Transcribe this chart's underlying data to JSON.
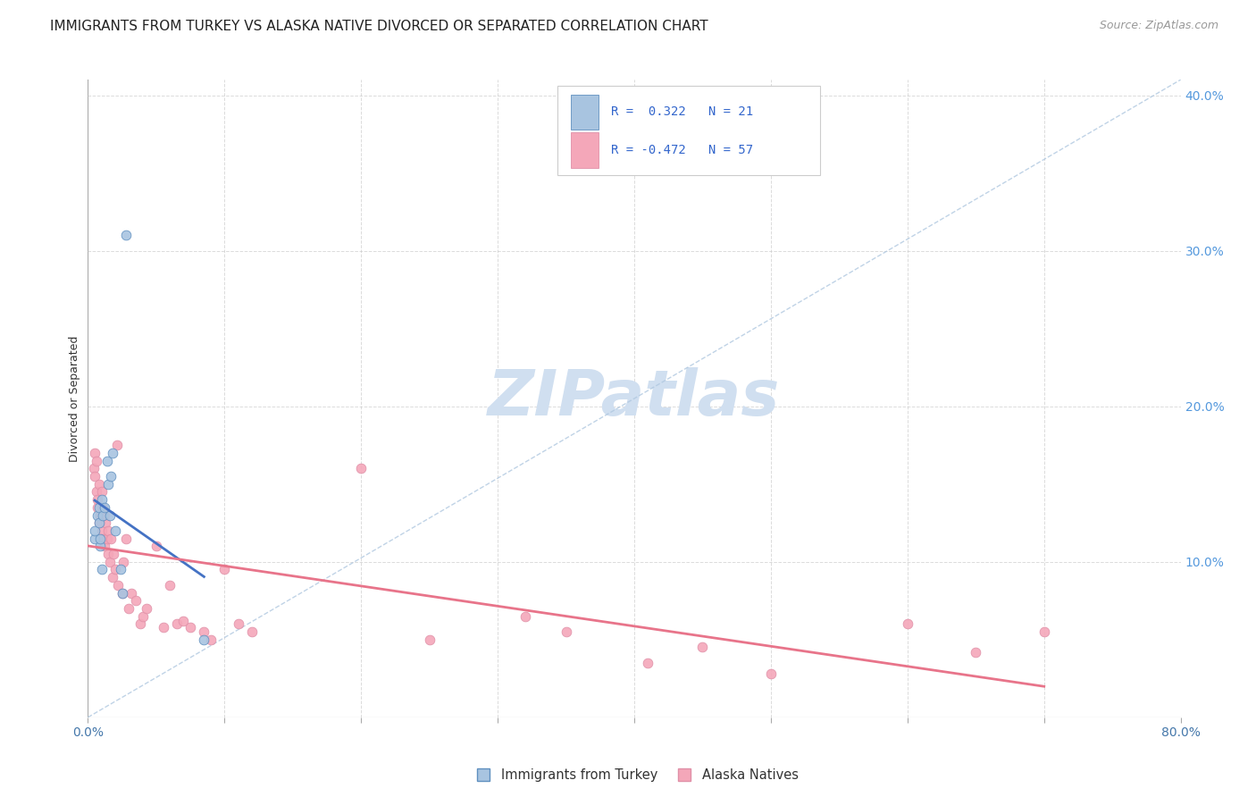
{
  "title": "IMMIGRANTS FROM TURKEY VS ALASKA NATIVE DIVORCED OR SEPARATED CORRELATION CHART",
  "source": "Source: ZipAtlas.com",
  "ylabel": "Divorced or Separated",
  "legend_entries": [
    {
      "label": "Immigrants from Turkey",
      "R": 0.322,
      "N": 21
    },
    {
      "label": "Alaska Natives",
      "R": -0.472,
      "N": 57
    }
  ],
  "background_color": "#ffffff",
  "plot_bg_color": "#ffffff",
  "grid_color": "#cccccc",
  "xmin": 0.0,
  "xmax": 0.8,
  "ymin": 0.0,
  "ymax": 0.41,
  "x_ticks": [
    0.0,
    0.1,
    0.2,
    0.3,
    0.4,
    0.5,
    0.6,
    0.7,
    0.8
  ],
  "y_ticks_right": [
    0.0,
    0.1,
    0.2,
    0.3,
    0.4
  ],
  "blue_scatter_x": [
    0.005,
    0.005,
    0.007,
    0.008,
    0.008,
    0.009,
    0.009,
    0.01,
    0.01,
    0.011,
    0.012,
    0.014,
    0.015,
    0.016,
    0.017,
    0.018,
    0.02,
    0.024,
    0.025,
    0.028,
    0.085
  ],
  "blue_scatter_y": [
    0.115,
    0.12,
    0.13,
    0.125,
    0.135,
    0.11,
    0.115,
    0.14,
    0.095,
    0.13,
    0.135,
    0.165,
    0.15,
    0.13,
    0.155,
    0.17,
    0.12,
    0.095,
    0.08,
    0.31,
    0.05
  ],
  "pink_scatter_x": [
    0.004,
    0.005,
    0.005,
    0.006,
    0.006,
    0.007,
    0.007,
    0.008,
    0.008,
    0.009,
    0.01,
    0.01,
    0.011,
    0.011,
    0.012,
    0.012,
    0.013,
    0.014,
    0.015,
    0.015,
    0.016,
    0.017,
    0.018,
    0.019,
    0.02,
    0.021,
    0.022,
    0.025,
    0.026,
    0.028,
    0.03,
    0.032,
    0.035,
    0.038,
    0.04,
    0.043,
    0.05,
    0.055,
    0.06,
    0.065,
    0.07,
    0.075,
    0.085,
    0.09,
    0.1,
    0.11,
    0.12,
    0.2,
    0.25,
    0.32,
    0.35,
    0.41,
    0.45,
    0.5,
    0.6,
    0.65,
    0.7
  ],
  "pink_scatter_y": [
    0.16,
    0.155,
    0.17,
    0.145,
    0.165,
    0.135,
    0.14,
    0.15,
    0.125,
    0.13,
    0.145,
    0.12,
    0.135,
    0.115,
    0.13,
    0.11,
    0.125,
    0.115,
    0.105,
    0.12,
    0.1,
    0.115,
    0.09,
    0.105,
    0.095,
    0.175,
    0.085,
    0.08,
    0.1,
    0.115,
    0.07,
    0.08,
    0.075,
    0.06,
    0.065,
    0.07,
    0.11,
    0.058,
    0.085,
    0.06,
    0.062,
    0.058,
    0.055,
    0.05,
    0.095,
    0.06,
    0.055,
    0.16,
    0.05,
    0.065,
    0.055,
    0.035,
    0.045,
    0.028,
    0.06,
    0.042,
    0.055
  ],
  "blue_line_color": "#4472c4",
  "pink_line_color": "#e8748a",
  "dashed_line_color": "#b0c8e0",
  "scatter_blue_color": "#a8c4e0",
  "scatter_pink_color": "#f4a7b9",
  "scatter_blue_edge": "#6090c0",
  "scatter_pink_edge": "#e090a8",
  "marker_size": 60,
  "title_fontsize": 11,
  "axis_fontsize": 9,
  "tick_fontsize": 10,
  "watermark_text": "ZIPatlas",
  "watermark_color": "#d0dff0",
  "watermark_fontsize": 52
}
